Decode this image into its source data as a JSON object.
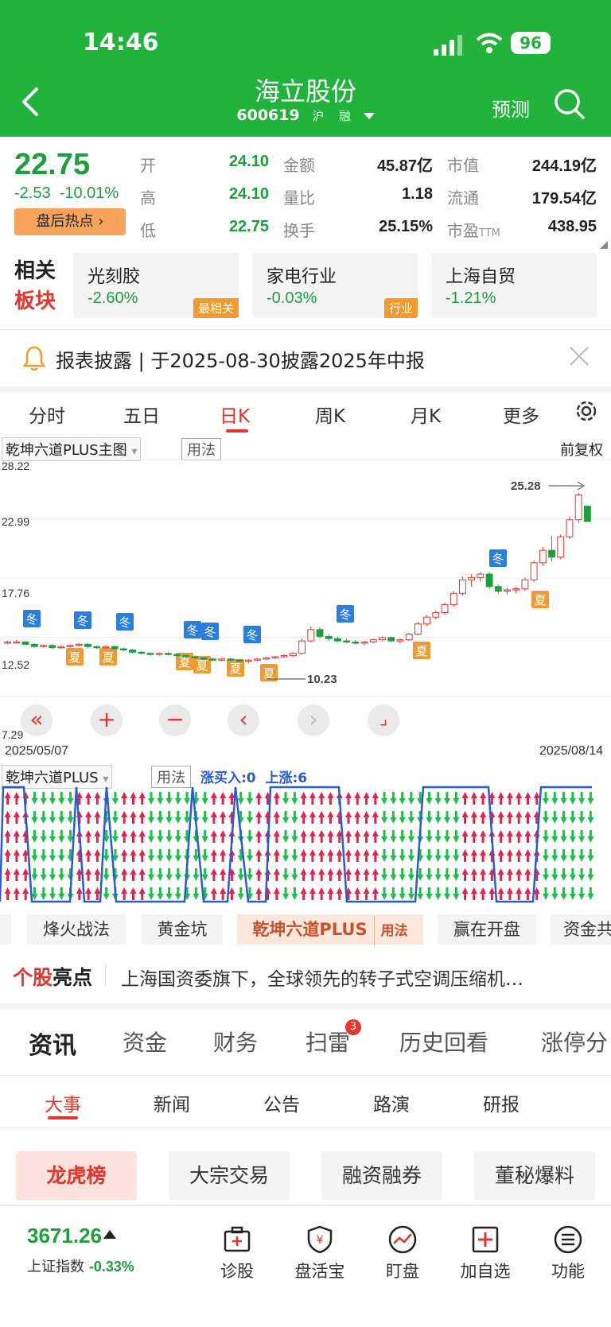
{
  "status_bar": {
    "time": "14:46",
    "battery": "96"
  },
  "header": {
    "stock_name": "海立股份",
    "stock_code": "600619",
    "market_tag": "沪",
    "margin_tag": "融",
    "forecast_label": "预测"
  },
  "quote": {
    "price": "22.75",
    "change": "-2.53",
    "change_pct": "-10.01%",
    "hot_button": "盘后热点",
    "fields": {
      "open_label": "开",
      "open": "24.10",
      "high_label": "高",
      "high": "24.10",
      "low_label": "低",
      "low": "22.75",
      "amount_label": "金额",
      "amount": "45.87亿",
      "vol_ratio_label": "量比",
      "vol_ratio": "1.18",
      "turnover_label": "换手",
      "turnover": "25.15%",
      "mkt_cap_label": "市值",
      "mkt_cap": "244.19亿",
      "float_cap_label": "流通",
      "float_cap": "179.54亿",
      "pe_label": "市盈",
      "pe_suffix": "TTM",
      "pe": "438.95"
    }
  },
  "sectors": {
    "label_line1": "相关",
    "label_line2": "板块",
    "items": [
      {
        "name": "光刻胶",
        "change": "-2.60%",
        "tag": "最相关"
      },
      {
        "name": "家电行业",
        "change": "-0.03%",
        "tag": "行业"
      },
      {
        "name": "上海自贸",
        "change": "-1.21%",
        "tag": ""
      }
    ]
  },
  "notice": {
    "text": "报表披露 | 于2025-08-30披露2025年中报"
  },
  "chart_tabs": [
    "分时",
    "五日",
    "日K",
    "周K",
    "月K",
    "更多"
  ],
  "chart_tabs_active": "日K",
  "main_indicator": {
    "name": "乾坤六道PLUS主图",
    "usage": "用法",
    "adjust": "前复权"
  },
  "kline_axis": {
    "y_labels": [
      "28.22",
      "22.99",
      "17.76",
      "12.52",
      "7.29"
    ],
    "high_marker": "25.28",
    "low_marker": "10.23",
    "start_date": "2025/05/07",
    "end_date": "2025/08/14"
  },
  "sub_indicator": {
    "name": "乾坤六道PLUS",
    "usage": "用法",
    "buy_label": "涨买入:0",
    "up_label": "上涨:6"
  },
  "chart_data": {
    "type": "candlestick",
    "x_start": "2025/05/07",
    "x_end": "2025/08/14",
    "ylim": [
      7.29,
      28.22
    ],
    "y_ticks": [
      28.22,
      22.99,
      17.76,
      12.52,
      7.29
    ],
    "annotations": [
      {
        "label": "25.28",
        "kind": "max"
      },
      {
        "label": "10.23",
        "kind": "min"
      }
    ],
    "candles": [
      [
        12.0,
        12.2,
        11.9,
        12.1
      ],
      [
        12.1,
        12.3,
        12.0,
        12.1
      ],
      [
        12.1,
        12.2,
        11.9,
        11.9
      ],
      [
        11.9,
        12.0,
        11.6,
        11.7
      ],
      [
        11.7,
        11.9,
        11.6,
        11.8
      ],
      [
        11.8,
        11.9,
        11.5,
        11.6
      ],
      [
        11.6,
        11.8,
        11.5,
        11.7
      ],
      [
        11.7,
        11.9,
        11.6,
        11.8
      ],
      [
        11.8,
        12.0,
        11.7,
        11.9
      ],
      [
        11.9,
        12.0,
        11.6,
        11.7
      ],
      [
        11.7,
        11.8,
        11.5,
        11.6
      ],
      [
        11.6,
        11.8,
        11.5,
        11.7
      ],
      [
        11.7,
        11.8,
        11.4,
        11.5
      ],
      [
        11.5,
        11.6,
        11.3,
        11.4
      ],
      [
        11.4,
        11.5,
        11.1,
        11.2
      ],
      [
        11.2,
        11.3,
        11.0,
        11.1
      ],
      [
        11.1,
        11.2,
        10.9,
        11.0
      ],
      [
        11.0,
        11.2,
        10.9,
        11.1
      ],
      [
        11.1,
        11.2,
        10.9,
        11.0
      ],
      [
        11.0,
        11.1,
        10.8,
        10.9
      ],
      [
        10.9,
        11.0,
        10.7,
        10.8
      ],
      [
        10.8,
        10.9,
        10.6,
        10.7
      ],
      [
        10.7,
        10.8,
        10.5,
        10.6
      ],
      [
        10.6,
        10.7,
        10.4,
        10.5
      ],
      [
        10.5,
        10.7,
        10.4,
        10.6
      ],
      [
        10.6,
        10.7,
        10.4,
        10.5
      ],
      [
        10.5,
        10.6,
        10.3,
        10.4
      ],
      [
        10.4,
        10.6,
        10.23,
        10.5
      ],
      [
        10.5,
        10.7,
        10.4,
        10.6
      ],
      [
        10.6,
        10.8,
        10.5,
        10.7
      ],
      [
        10.7,
        10.9,
        10.6,
        10.8
      ],
      [
        10.8,
        11.0,
        10.7,
        10.9
      ],
      [
        10.9,
        11.2,
        10.8,
        11.1
      ],
      [
        11.1,
        12.4,
        11.0,
        12.2
      ],
      [
        12.2,
        13.5,
        12.1,
        13.2
      ],
      [
        13.2,
        13.4,
        12.4,
        12.6
      ],
      [
        12.6,
        12.8,
        12.2,
        12.4
      ],
      [
        12.4,
        12.6,
        12.1,
        12.2
      ],
      [
        12.2,
        12.4,
        12.0,
        12.1
      ],
      [
        12.1,
        12.3,
        11.9,
        12.0
      ],
      [
        12.0,
        12.2,
        11.8,
        12.1
      ],
      [
        12.1,
        12.4,
        12.0,
        12.3
      ],
      [
        12.3,
        12.6,
        12.2,
        12.5
      ],
      [
        12.5,
        12.6,
        12.1,
        12.2
      ],
      [
        12.2,
        12.4,
        12.0,
        12.3
      ],
      [
        12.3,
        12.9,
        12.2,
        12.8
      ],
      [
        12.8,
        13.9,
        12.7,
        13.7
      ],
      [
        13.7,
        14.5,
        13.5,
        14.3
      ],
      [
        14.3,
        14.9,
        14.1,
        14.7
      ],
      [
        14.7,
        15.6,
        14.5,
        15.4
      ],
      [
        15.4,
        16.6,
        15.2,
        16.4
      ],
      [
        16.4,
        17.9,
        16.2,
        17.6
      ],
      [
        17.6,
        18.1,
        17.0,
        17.8
      ],
      [
        17.8,
        18.3,
        17.4,
        18.1
      ],
      [
        18.1,
        18.3,
        16.8,
        17.0
      ],
      [
        17.0,
        17.2,
        16.4,
        16.6
      ],
      [
        16.6,
        16.9,
        16.3,
        16.7
      ],
      [
        16.7,
        17.0,
        16.4,
        16.8
      ],
      [
        16.8,
        17.8,
        16.6,
        17.6
      ],
      [
        17.6,
        19.3,
        17.4,
        19.1
      ],
      [
        19.1,
        20.5,
        18.8,
        20.2
      ],
      [
        20.2,
        21.5,
        19.2,
        19.6
      ],
      [
        19.6,
        21.6,
        19.4,
        21.4
      ],
      [
        21.4,
        23.2,
        21.2,
        22.9
      ],
      [
        22.9,
        25.28,
        22.6,
        25.1
      ],
      [
        24.1,
        24.1,
        22.75,
        22.75
      ]
    ],
    "signal_segments_up": [
      6,
      7,
      6,
      6,
      6,
      6,
      6
    ]
  },
  "strategy_tabs": [
    "烽火战法",
    "黄金坑",
    "乾坤六道PLUS",
    "赢在开盘",
    "资金共"
  ],
  "strategy_usage": "用法",
  "highlight": {
    "label_red": "个股",
    "label_black": "亮点",
    "text": "上海国资委旗下，全球领先的转子式空调压缩机…"
  },
  "main_tabs": [
    "资讯",
    "资金",
    "财务",
    "扫雷",
    "历史回看",
    "涨停分"
  ],
  "scan_badge": "3",
  "sub_tabs": [
    "大事",
    "新闻",
    "公告",
    "路演",
    "研报"
  ],
  "chips": [
    "龙虎榜",
    "大宗交易",
    "融资融券",
    "董秘爆料"
  ],
  "bottom_bar": {
    "index_value": "3671.26",
    "index_name": "上证指数",
    "index_change": "-0.33%",
    "nav": [
      "诊股",
      "盘活宝",
      "盯盘",
      "加自选",
      "功能"
    ]
  }
}
